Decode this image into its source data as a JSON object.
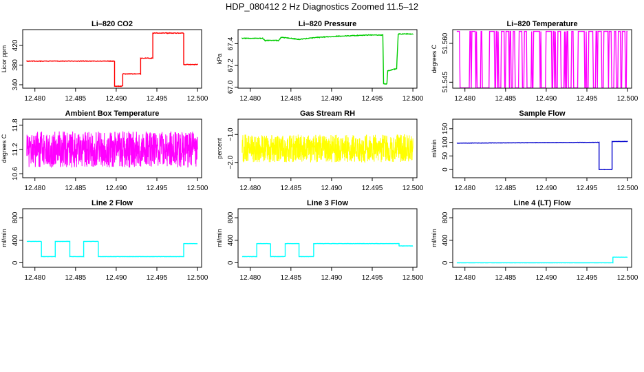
{
  "figure_title": "HDP_080412  2 Hz Diagnostics Zoomed 11.5–12",
  "chart_data": [
    {
      "type": "line",
      "title": "Li–820 CO2",
      "ylabel": "Licor ppm",
      "color": "#ff0000",
      "xlim": [
        12.4785,
        12.5005
      ],
      "ylim": [
        333,
        452
      ],
      "xticks": [
        "12.480",
        "12.485",
        "12.490",
        "12.495",
        "12.500"
      ],
      "yticks": [
        {
          "v": 340,
          "label": "340"
        },
        {
          "v": 380,
          "label": "380"
        },
        {
          "v": 420,
          "label": "420"
        }
      ],
      "steps": [
        [
          12.479,
          388
        ],
        [
          12.4898,
          388
        ],
        [
          12.4898,
          337
        ],
        [
          12.4908,
          337
        ],
        [
          12.4908,
          362
        ],
        [
          12.4915,
          362
        ],
        [
          12.4915,
          362
        ],
        [
          12.493,
          362
        ],
        [
          12.493,
          394
        ],
        [
          12.4945,
          394
        ],
        [
          12.4945,
          445
        ],
        [
          12.4963,
          445
        ],
        [
          12.4983,
          445
        ],
        [
          12.4983,
          381
        ],
        [
          12.5,
          381
        ]
      ],
      "noise": 1.2,
      "noise_type": "line",
      "seed": 1
    },
    {
      "type": "line",
      "title": "Li–820 Pressure",
      "ylabel": "kPa",
      "color": "#00cc00",
      "xlim": [
        12.4785,
        12.5005
      ],
      "ylim": [
        66.99,
        67.53
      ],
      "xticks": [
        "12.480",
        "12.485",
        "12.490",
        "12.495",
        "12.500"
      ],
      "yticks": [
        {
          "v": 67.0,
          "label": "67.0"
        },
        {
          "v": 67.2,
          "label": "67.2"
        },
        {
          "v": 67.4,
          "label": "67.4"
        }
      ],
      "steps": [
        [
          12.479,
          67.45
        ],
        [
          12.4815,
          67.45
        ],
        [
          12.4818,
          67.43
        ],
        [
          12.4835,
          67.43
        ],
        [
          12.4838,
          67.46
        ],
        [
          12.486,
          67.44
        ],
        [
          12.4885,
          67.46
        ],
        [
          12.491,
          67.47
        ],
        [
          12.4945,
          67.48
        ],
        [
          12.4963,
          67.48
        ],
        [
          12.4964,
          67.03
        ],
        [
          12.4968,
          67.03
        ],
        [
          12.4969,
          67.15
        ],
        [
          12.498,
          67.17
        ],
        [
          12.4982,
          67.49
        ],
        [
          12.5,
          67.49
        ]
      ],
      "noise": 0.006,
      "noise_type": "line",
      "seed": 2
    },
    {
      "type": "line",
      "title": "Li–820 Temperature",
      "ylabel": "degrees C",
      "color": "#ff00ff",
      "xlim": [
        12.4785,
        12.5005
      ],
      "ylim": [
        51.5427,
        51.5653
      ],
      "xticks": [
        "12.480",
        "12.485",
        "12.490",
        "12.495",
        "12.500"
      ],
      "yticks": [
        {
          "v": 51.545,
          "label": "51.545"
        },
        {
          "v": 51.56,
          "label": "51.560"
        }
      ],
      "low": 51.5428,
      "high": 51.5646,
      "noise_type": "binary",
      "seed": 3
    },
    {
      "type": "line",
      "title": "Ambient Box Temperature",
      "ylabel": "degrees C",
      "color": "#ff00ff",
      "xlim": [
        12.4785,
        12.5005
      ],
      "ylim": [
        10.5,
        11.95
      ],
      "xticks": [
        "12.480",
        "12.485",
        "12.490",
        "12.495",
        "12.500"
      ],
      "yticks": [
        {
          "v": 10.6,
          "label": "10.6"
        },
        {
          "v": 11.2,
          "label": "11.2"
        },
        {
          "v": 11.8,
          "label": "11.8"
        }
      ],
      "steps": [
        [
          12.479,
          11.2
        ],
        [
          12.5,
          11.2
        ]
      ],
      "noise": 0.45,
      "noise_type": "dense",
      "seed": 4
    },
    {
      "type": "line",
      "title": "Gas Stream RH",
      "ylabel": "percent",
      "color": "#ffff00",
      "xlim": [
        12.4785,
        12.5005
      ],
      "ylim": [
        -2.55,
        -0.45
      ],
      "xticks": [
        "12.480",
        "12.485",
        "12.490",
        "12.495",
        "12.500"
      ],
      "yticks": [
        {
          "v": -2.0,
          "label": "−2.0"
        },
        {
          "v": -1.0,
          "label": "−1.0"
        }
      ],
      "steps": [
        [
          12.479,
          -1.5
        ],
        [
          12.5,
          -1.5
        ]
      ],
      "noise": 0.5,
      "noise_type": "dense",
      "seed": 5
    },
    {
      "type": "line",
      "title": "Sample Flow",
      "ylabel": "ml/min",
      "color": "#0000cc",
      "xlim": [
        12.4785,
        12.5005
      ],
      "ylim": [
        -30,
        185
      ],
      "xticks": [
        "12.480",
        "12.485",
        "12.490",
        "12.495",
        "12.500"
      ],
      "yticks": [
        {
          "v": 0,
          "label": "0"
        },
        {
          "v": 50,
          "label": "50"
        },
        {
          "v": 100,
          "label": "100"
        },
        {
          "v": 150,
          "label": "150"
        }
      ],
      "steps": [
        [
          12.479,
          97
        ],
        [
          12.4965,
          100
        ],
        [
          12.4965,
          0
        ],
        [
          12.4981,
          0
        ],
        [
          12.4981,
          103
        ],
        [
          12.5,
          103
        ]
      ],
      "noise": 1.0,
      "noise_type": "line",
      "seed": 6
    },
    {
      "type": "line",
      "title": "Line 2 Flow",
      "ylabel": "ml/min",
      "color": "#00ffff",
      "xlim": [
        12.4785,
        12.5005
      ],
      "ylim": [
        -80,
        960
      ],
      "xticks": [
        "12.480",
        "12.485",
        "12.490",
        "12.495",
        "12.500"
      ],
      "yticks": [
        {
          "v": 0,
          "label": "0"
        },
        {
          "v": 400,
          "label": "400"
        },
        {
          "v": 800,
          "label": "800"
        }
      ],
      "steps": [
        [
          12.479,
          380
        ],
        [
          12.4808,
          380
        ],
        [
          12.4808,
          110
        ],
        [
          12.4825,
          110
        ],
        [
          12.4825,
          380
        ],
        [
          12.4843,
          380
        ],
        [
          12.4843,
          110
        ],
        [
          12.486,
          110
        ],
        [
          12.486,
          380
        ],
        [
          12.4878,
          380
        ],
        [
          12.4878,
          110
        ],
        [
          12.4983,
          110
        ],
        [
          12.4983,
          340
        ],
        [
          12.5,
          340
        ]
      ],
      "noise": 4,
      "noise_type": "line",
      "seed": 7
    },
    {
      "type": "line",
      "title": "Line 3 Flow",
      "ylabel": "ml/min",
      "color": "#00ffff",
      "xlim": [
        12.4785,
        12.5005
      ],
      "ylim": [
        -80,
        960
      ],
      "xticks": [
        "12.480",
        "12.485",
        "12.490",
        "12.495",
        "12.500"
      ],
      "yticks": [
        {
          "v": 0,
          "label": "0"
        },
        {
          "v": 400,
          "label": "400"
        },
        {
          "v": 800,
          "label": "800"
        }
      ],
      "steps": [
        [
          12.479,
          110
        ],
        [
          12.4808,
          110
        ],
        [
          12.4808,
          340
        ],
        [
          12.4825,
          340
        ],
        [
          12.4825,
          110
        ],
        [
          12.4843,
          110
        ],
        [
          12.4843,
          340
        ],
        [
          12.486,
          340
        ],
        [
          12.486,
          110
        ],
        [
          12.4878,
          110
        ],
        [
          12.4878,
          340
        ],
        [
          12.4983,
          340
        ],
        [
          12.4983,
          300
        ],
        [
          12.5,
          300
        ]
      ],
      "noise": 4,
      "noise_type": "line",
      "seed": 8
    },
    {
      "type": "line",
      "title": "Line 4 (LT) Flow",
      "ylabel": "ml/min",
      "color": "#00ffff",
      "xlim": [
        12.4785,
        12.5005
      ],
      "ylim": [
        -80,
        960
      ],
      "xticks": [
        "12.480",
        "12.485",
        "12.490",
        "12.495",
        "12.500"
      ],
      "yticks": [
        {
          "v": 0,
          "label": "0"
        },
        {
          "v": 400,
          "label": "400"
        },
        {
          "v": 800,
          "label": "800"
        }
      ],
      "steps": [
        [
          12.479,
          0
        ],
        [
          12.4982,
          0
        ],
        [
          12.4982,
          100
        ],
        [
          12.5,
          100
        ]
      ],
      "noise": 2,
      "noise_type": "line",
      "seed": 9
    }
  ]
}
